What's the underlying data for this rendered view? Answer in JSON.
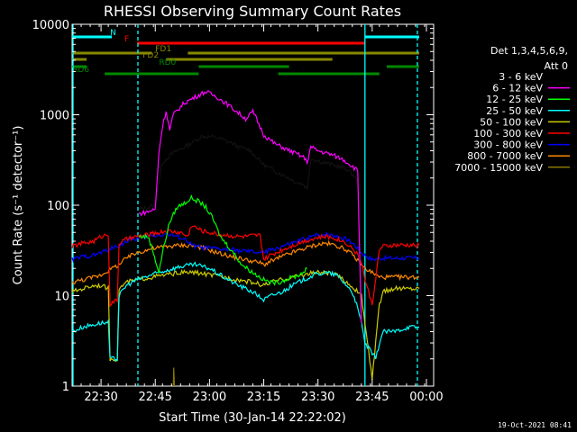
{
  "chart_data": {
    "type": "line",
    "title": "RHESSI Observing Summary Count Rates",
    "xlabel": "Start Time (30-Jan-14 22:22:02)",
    "ylabel": "Count Rate (s⁻¹ detector⁻¹)",
    "yscale": "log",
    "xlim_min": [
      0,
      100
    ],
    "ylim": [
      1,
      10000
    ],
    "x_ticks": [
      {
        "v": 8,
        "label": "22:30"
      },
      {
        "v": 23,
        "label": "22:45"
      },
      {
        "v": 38,
        "label": "23:00"
      },
      {
        "v": 53,
        "label": "23:15"
      },
      {
        "v": 68,
        "label": "23:30"
      },
      {
        "v": 83,
        "label": "23:45"
      },
      {
        "v": 98,
        "label": "00:00"
      }
    ],
    "y_ticks": [
      {
        "v": 1,
        "label": "1"
      },
      {
        "v": 10,
        "label": "10"
      },
      {
        "v": 100,
        "label": "100"
      },
      {
        "v": 1000,
        "label": "1000"
      },
      {
        "v": 10000,
        "label": "10000"
      }
    ],
    "detectors": "Det 1,3,4,5,6,9,",
    "attenuator": "Att 0",
    "series": [
      {
        "name": "3 - 6 keV",
        "color": "#000000",
        "points": [
          [
            18.5,
            90
          ],
          [
            21,
            95
          ],
          [
            23,
            100
          ],
          [
            24,
            180
          ],
          [
            25,
            300
          ],
          [
            28,
            380
          ],
          [
            32,
            460
          ],
          [
            36,
            580
          ],
          [
            40,
            560
          ],
          [
            44,
            490
          ],
          [
            46,
            440
          ],
          [
            49,
            410
          ],
          [
            53,
            280
          ],
          [
            56,
            240
          ],
          [
            59,
            210
          ],
          [
            62,
            180
          ],
          [
            64,
            170
          ],
          [
            65,
            150
          ],
          [
            66,
            330
          ],
          [
            69,
            300
          ],
          [
            72,
            280
          ],
          [
            76,
            250
          ],
          [
            78,
            210
          ],
          [
            79,
            180
          ],
          [
            80,
            3
          ]
        ]
      },
      {
        "name": "6 - 12 keV",
        "color": "#ff00ff",
        "points": [
          [
            18.5,
            80
          ],
          [
            21,
            85
          ],
          [
            23,
            90
          ],
          [
            24,
            380
          ],
          [
            25,
            750
          ],
          [
            26,
            1100
          ],
          [
            27,
            680
          ],
          [
            28,
            1000
          ],
          [
            31,
            1350
          ],
          [
            35,
            1650
          ],
          [
            37,
            1800
          ],
          [
            40,
            1580
          ],
          [
            43,
            1300
          ],
          [
            46,
            1050
          ],
          [
            48,
            900
          ],
          [
            50,
            1080
          ],
          [
            51,
            900
          ],
          [
            53,
            600
          ],
          [
            56,
            480
          ],
          [
            59,
            420
          ],
          [
            62,
            370
          ],
          [
            64,
            340
          ],
          [
            65,
            300
          ],
          [
            66,
            440
          ],
          [
            68,
            400
          ],
          [
            72,
            360
          ],
          [
            75,
            320
          ],
          [
            77,
            280
          ],
          [
            79,
            240
          ],
          [
            80,
            5
          ]
        ]
      },
      {
        "name": "12 - 25 keV",
        "color": "#00ff00",
        "points": [
          [
            18.5,
            45
          ],
          [
            21,
            45
          ],
          [
            22.5,
            30
          ],
          [
            24,
            18
          ],
          [
            25,
            30
          ],
          [
            26,
            45
          ],
          [
            27,
            65
          ],
          [
            29,
            95
          ],
          [
            31,
            105
          ],
          [
            33,
            120
          ],
          [
            35,
            110
          ],
          [
            37,
            95
          ],
          [
            39,
            70
          ],
          [
            41,
            45
          ],
          [
            44,
            32
          ],
          [
            47,
            22
          ],
          [
            50,
            18
          ],
          [
            53,
            15
          ],
          [
            55,
            14
          ],
          [
            57,
            14
          ],
          [
            59,
            15
          ],
          [
            61,
            16
          ],
          [
            63,
            17
          ],
          [
            65,
            20
          ]
        ]
      },
      {
        "name": "25 - 50 keV",
        "color": "#00ffff",
        "points": [
          [
            0,
            4
          ],
          [
            3,
            4.5
          ],
          [
            8,
            5
          ],
          [
            10,
            5
          ],
          [
            10.5,
            2
          ],
          [
            12.5,
            2
          ],
          [
            13,
            10
          ],
          [
            15,
            13
          ],
          [
            18,
            15
          ],
          [
            22,
            17
          ],
          [
            26,
            19
          ],
          [
            30,
            21
          ],
          [
            34,
            22
          ],
          [
            38,
            20
          ],
          [
            42,
            16
          ],
          [
            46,
            13
          ],
          [
            50,
            11
          ],
          [
            53,
            9
          ],
          [
            55,
            10
          ],
          [
            58,
            11
          ],
          [
            61,
            13
          ],
          [
            64,
            15
          ],
          [
            67,
            17
          ],
          [
            70,
            18
          ],
          [
            73,
            17
          ],
          [
            76,
            13
          ],
          [
            78,
            10
          ],
          [
            80,
            5
          ],
          [
            81,
            3
          ],
          [
            84,
            2
          ],
          [
            85,
            3
          ],
          [
            86,
            4
          ],
          [
            89,
            4
          ],
          [
            93,
            4.5
          ],
          [
            96,
            4.5
          ]
        ]
      },
      {
        "name": "50 - 100 keV",
        "color": "#cccc00",
        "points": [
          [
            0,
            11
          ],
          [
            3,
            12
          ],
          [
            6,
            13
          ],
          [
            8,
            13
          ],
          [
            10,
            12
          ],
          [
            10.5,
            2
          ],
          [
            12.5,
            2
          ],
          [
            13,
            12
          ],
          [
            15,
            14
          ],
          [
            18,
            15
          ],
          [
            22,
            16
          ],
          [
            26,
            17
          ],
          [
            30,
            18
          ],
          [
            34,
            18
          ],
          [
            38,
            17
          ],
          [
            42,
            16
          ],
          [
            46,
            15
          ],
          [
            50,
            14
          ],
          [
            53,
            13
          ],
          [
            55,
            14
          ],
          [
            58,
            15
          ],
          [
            61,
            16
          ],
          [
            64,
            17
          ],
          [
            67,
            18
          ],
          [
            70,
            18
          ],
          [
            73,
            17
          ],
          [
            76,
            14
          ],
          [
            78,
            12
          ],
          [
            80,
            10
          ],
          [
            81,
            5
          ],
          [
            83,
            1.2
          ],
          [
            85,
            8
          ],
          [
            86,
            11
          ],
          [
            89,
            12
          ],
          [
            93,
            12
          ],
          [
            96,
            12
          ]
        ]
      },
      {
        "name": "100 - 300 keV",
        "color": "#ff0000",
        "points": [
          [
            0,
            35
          ],
          [
            3,
            38
          ],
          [
            6,
            40
          ],
          [
            8,
            45
          ],
          [
            10,
            48
          ],
          [
            10.5,
            8
          ],
          [
            12.5,
            9
          ],
          [
            13,
            38
          ],
          [
            15,
            42
          ],
          [
            18,
            45
          ],
          [
            22,
            48
          ],
          [
            26,
            52
          ],
          [
            30,
            50
          ],
          [
            32,
            45
          ],
          [
            33,
            60
          ],
          [
            36,
            52
          ],
          [
            40,
            48
          ],
          [
            44,
            46
          ],
          [
            46,
            45
          ],
          [
            48,
            45
          ],
          [
            50,
            46
          ],
          [
            52,
            46
          ],
          [
            53,
            25
          ],
          [
            55,
            28
          ],
          [
            58,
            32
          ],
          [
            61,
            36
          ],
          [
            64,
            40
          ],
          [
            67,
            43
          ],
          [
            70,
            45
          ],
          [
            73,
            43
          ],
          [
            76,
            38
          ],
          [
            78,
            32
          ],
          [
            80,
            24
          ],
          [
            81,
            15
          ],
          [
            83,
            8
          ],
          [
            85,
            32
          ],
          [
            86,
            35
          ],
          [
            89,
            36
          ],
          [
            93,
            36
          ],
          [
            96,
            36
          ]
        ]
      },
      {
        "name": "300 - 800 keV",
        "color": "#0000ff",
        "points": [
          [
            0,
            25
          ],
          [
            3,
            27
          ],
          [
            6,
            28
          ],
          [
            8,
            30
          ],
          [
            10,
            32
          ],
          [
            13,
            36
          ],
          [
            15,
            40
          ],
          [
            18,
            43
          ],
          [
            22,
            46
          ],
          [
            26,
            48
          ],
          [
            30,
            44
          ],
          [
            32,
            40
          ],
          [
            33,
            36
          ],
          [
            36,
            34
          ],
          [
            40,
            33
          ],
          [
            44,
            32
          ],
          [
            48,
            31
          ],
          [
            52,
            30
          ],
          [
            53,
            30
          ],
          [
            55,
            32
          ],
          [
            58,
            35
          ],
          [
            61,
            38
          ],
          [
            64,
            42
          ],
          [
            67,
            46
          ],
          [
            70,
            48
          ],
          [
            73,
            46
          ],
          [
            76,
            42
          ],
          [
            78,
            37
          ],
          [
            80,
            30
          ],
          [
            81,
            28
          ],
          [
            83,
            25
          ],
          [
            85,
            26
          ],
          [
            86,
            26
          ],
          [
            89,
            26
          ],
          [
            93,
            26
          ],
          [
            96,
            26
          ]
        ]
      },
      {
        "name": "800 - 7000 keV",
        "color": "#ff8800",
        "points": [
          [
            0,
            14
          ],
          [
            3,
            15
          ],
          [
            6,
            16
          ],
          [
            8,
            17
          ],
          [
            10,
            19
          ],
          [
            13,
            22
          ],
          [
            15,
            26
          ],
          [
            18,
            30
          ],
          [
            22,
            33
          ],
          [
            26,
            35
          ],
          [
            30,
            36
          ],
          [
            33,
            36
          ],
          [
            36,
            34
          ],
          [
            40,
            30
          ],
          [
            44,
            27
          ],
          [
            48,
            25
          ],
          [
            52,
            23
          ],
          [
            53,
            22
          ],
          [
            55,
            24
          ],
          [
            58,
            27
          ],
          [
            61,
            30
          ],
          [
            64,
            33
          ],
          [
            67,
            36
          ],
          [
            70,
            38
          ],
          [
            73,
            36
          ],
          [
            76,
            32
          ],
          [
            78,
            27
          ],
          [
            80,
            22
          ],
          [
            81,
            20
          ],
          [
            83,
            18
          ],
          [
            85,
            16
          ],
          [
            86,
            16
          ],
          [
            89,
            16
          ],
          [
            93,
            16
          ],
          [
            96,
            16
          ]
        ]
      },
      {
        "name": "7000 - 15000 keV",
        "color": "#887700",
        "points": [
          [
            28,
            1
          ],
          [
            28.1,
            1.6
          ],
          [
            28.3,
            1
          ]
        ]
      }
    ],
    "state_bars": [
      {
        "label": "N",
        "color": "#00ffff",
        "segments": [
          [
            0,
            11
          ],
          [
            81,
            96
          ]
        ]
      },
      {
        "label": "F",
        "color": "#ff0000",
        "segments": [
          [
            18,
            81
          ]
        ]
      },
      {
        "label": "FD1",
        "color": "#888800",
        "segments": [
          [
            0,
            22
          ],
          [
            32,
            96
          ]
        ]
      },
      {
        "label": "FD2",
        "color": "#888800",
        "segments": [
          [
            0,
            4
          ],
          [
            26,
            72
          ]
        ]
      },
      {
        "label": "RD0",
        "color": "#008800",
        "segments": [
          [
            0,
            4
          ],
          [
            35,
            60
          ],
          [
            87,
            96
          ]
        ]
      },
      {
        "label": "RD6",
        "color": "#008800",
        "segments": [
          [
            9,
            35
          ],
          [
            57,
            85
          ]
        ]
      }
    ]
  },
  "footer_date": "19-Oct-2021 08:41"
}
